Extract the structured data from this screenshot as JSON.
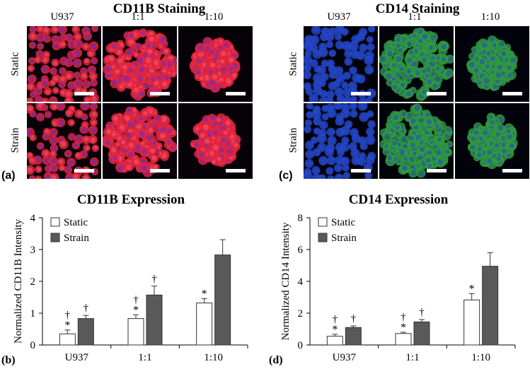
{
  "micrographs": [
    {
      "id": "cd11b",
      "title": "CD11B Staining",
      "panel_label": "(a)",
      "columns": [
        "U937",
        "1:1",
        "1:10"
      ],
      "rows": [
        "Static",
        "Strain"
      ],
      "colors": {
        "background": "#070208",
        "cell": "#e0243e",
        "nucleus": "#5a2fd0",
        "highlight": "#ff5a6a"
      }
    },
    {
      "id": "cd14",
      "title": "CD14 Staining",
      "panel_label": "(c)",
      "columns": [
        "U937",
        "1:1",
        "1:10"
      ],
      "rows": [
        "Static",
        "Strain"
      ],
      "colors": {
        "background": "#02030a",
        "cell": "#2f9a3a",
        "nucleus": "#2446c8",
        "highlight": "#8ee26a"
      }
    }
  ],
  "chart_data": [
    {
      "type": "bar",
      "panel_label": "(b)",
      "title": "CD11B Expression",
      "ylabel": "Normalized CD11B Intensity",
      "xlabel": "",
      "categories": [
        "U937",
        "1:1",
        "1:10"
      ],
      "ylim": [
        0,
        4
      ],
      "yticks": [
        0,
        1,
        2,
        3,
        4
      ],
      "series": [
        {
          "name": "Static",
          "color": "#ffffff",
          "values": [
            0.35,
            0.83,
            1.32
          ],
          "errors": [
            0.12,
            0.12,
            0.14
          ],
          "star": [
            "*",
            "*",
            "*"
          ],
          "dagger": [
            "†",
            "†",
            ""
          ]
        },
        {
          "name": "Strain",
          "color": "#595959",
          "values": [
            0.83,
            1.57,
            2.83
          ],
          "errors": [
            0.1,
            0.28,
            0.48
          ],
          "star": [
            "",
            "",
            ""
          ],
          "dagger": [
            "†",
            "†",
            ""
          ]
        }
      ],
      "legend": "top-left",
      "grid": false
    },
    {
      "type": "bar",
      "panel_label": "(d)",
      "title": "CD14 Expression",
      "ylabel": "Normalized CD14 Intensity",
      "xlabel": "",
      "categories": [
        "U937",
        "1:1",
        "1:10"
      ],
      "ylim": [
        0,
        8
      ],
      "yticks": [
        0,
        2,
        4,
        6,
        8
      ],
      "series": [
        {
          "name": "Static",
          "color": "#ffffff",
          "values": [
            0.55,
            0.72,
            2.83
          ],
          "errors": [
            0.12,
            0.08,
            0.4
          ],
          "star": [
            "*",
            "*",
            "*"
          ],
          "dagger": [
            "†",
            "†",
            ""
          ]
        },
        {
          "name": "Strain",
          "color": "#595959",
          "values": [
            1.1,
            1.45,
            4.95
          ],
          "errors": [
            0.1,
            0.15,
            0.85
          ],
          "star": [
            "",
            "",
            ""
          ],
          "dagger": [
            "†",
            "†",
            ""
          ]
        }
      ],
      "legend": "top-left",
      "grid": false
    }
  ]
}
